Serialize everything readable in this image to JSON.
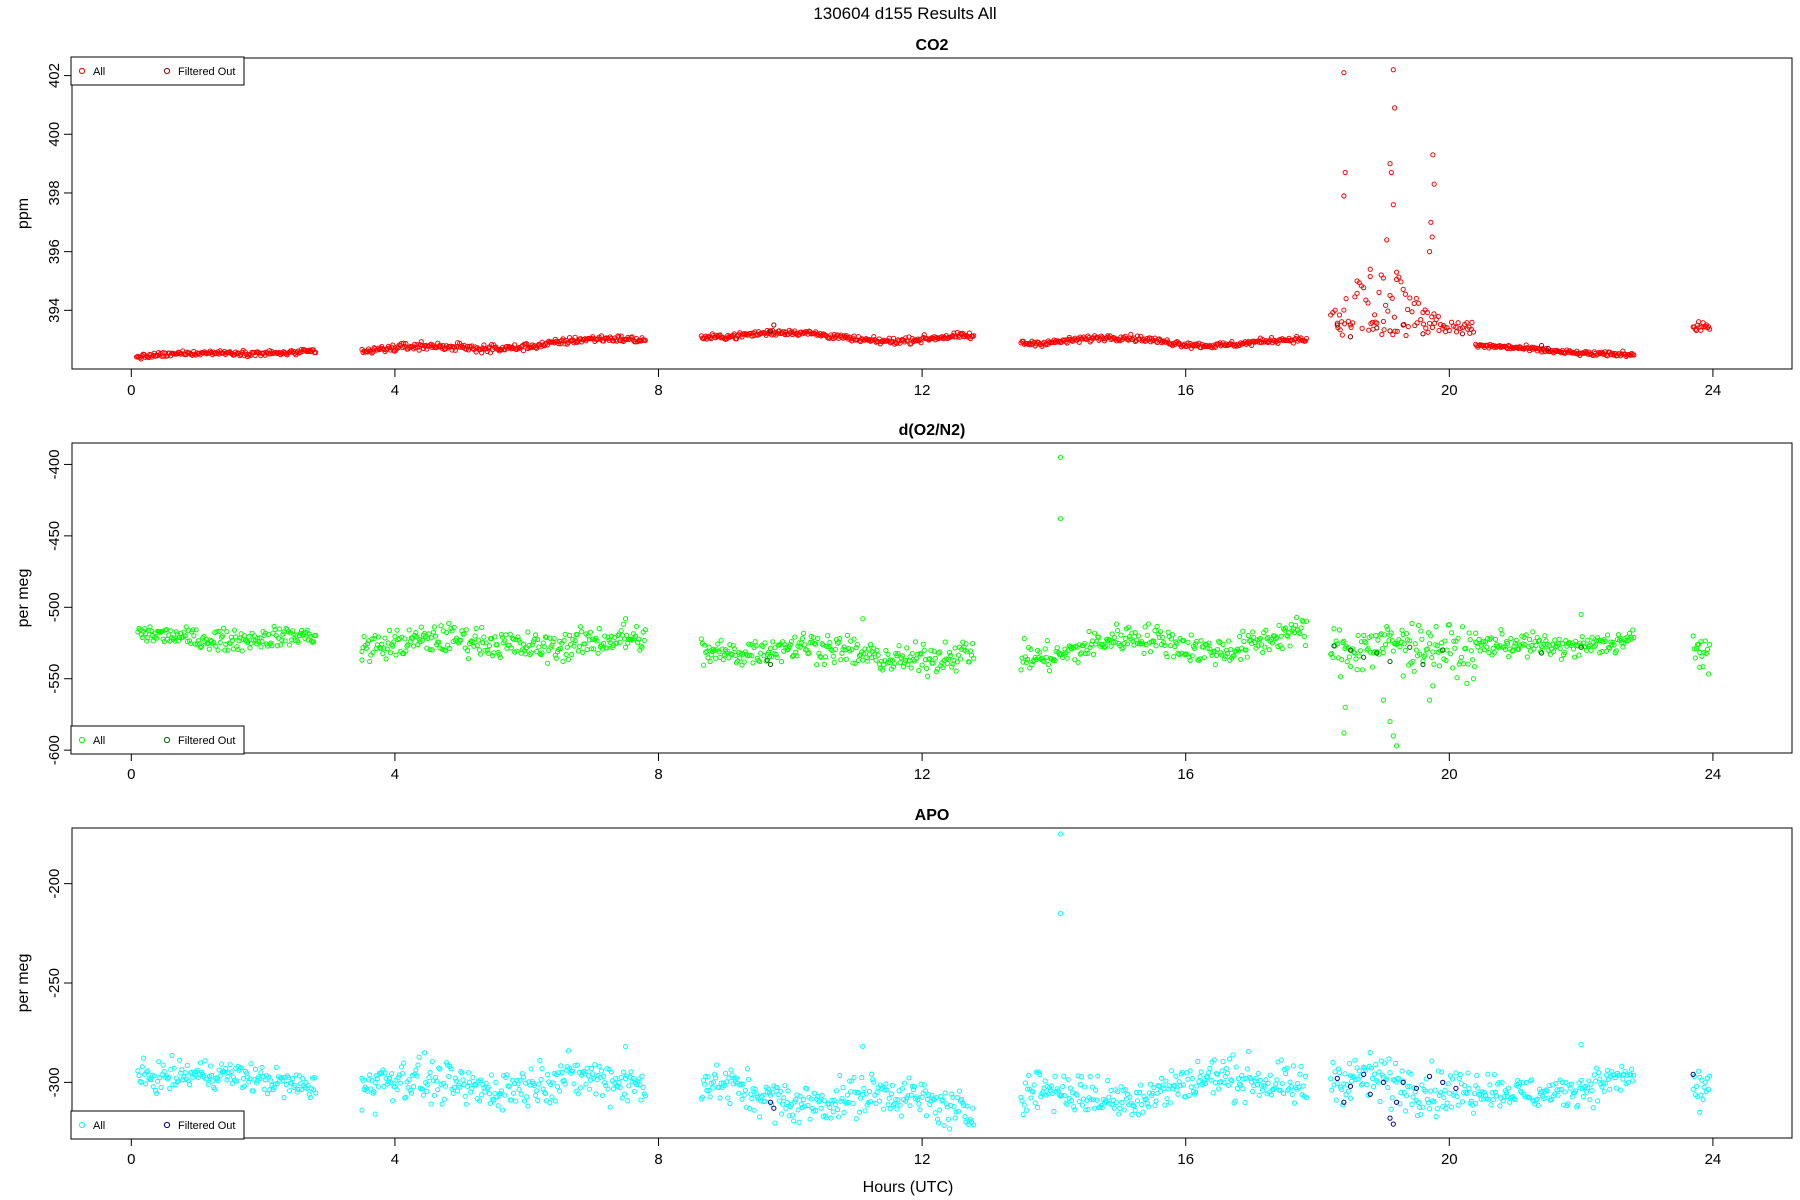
{
  "figure": {
    "title": "130604   d155   Results All",
    "xlabel": "Hours (UTC)"
  },
  "chart_data": [
    {
      "type": "scatter",
      "title": "CO2",
      "ylabel": "ppm",
      "xlim": [
        -0.9,
        25.2
      ],
      "ylim": [
        392.0,
        402.6
      ],
      "xticks": [
        0,
        4,
        8,
        12,
        16,
        20,
        24
      ],
      "yticks": [
        394,
        396,
        398,
        400,
        402
      ],
      "grid": false,
      "legend": {
        "position": "top-left",
        "entries": [
          "All",
          "Filtered Out"
        ]
      },
      "colors": {
        "all": "#ff0000",
        "filtered": "#8b0000"
      },
      "segments": [
        {
          "start": 0.08,
          "end": 2.8,
          "y0": 392.43,
          "y1": 392.63,
          "noise": 0.04,
          "wave": 0.05
        },
        {
          "start": 3.5,
          "end": 7.8,
          "y0": 392.6,
          "y1": 393.0,
          "noise": 0.06,
          "wave": 0.1
        },
        {
          "start": 8.65,
          "end": 12.8,
          "y0": 393.2,
          "y1": 393.0,
          "noise": 0.05,
          "wave": 0.12
        },
        {
          "start": 13.5,
          "end": 17.85,
          "y0": 393.0,
          "y1": 392.88,
          "noise": 0.05,
          "wave": 0.12
        },
        {
          "start": 20.4,
          "end": 22.8,
          "y0": 392.75,
          "y1": 392.5,
          "noise": 0.04,
          "wave": 0.05
        },
        {
          "start": 23.7,
          "end": 23.95,
          "y0": 393.5,
          "y1": 393.45,
          "noise": 0.1,
          "wave": 0.0
        }
      ],
      "spike": {
        "start": 18.2,
        "end": 20.4,
        "base": 393.1
      },
      "outliers": [
        [
          18.4,
          402.1
        ],
        [
          19.15,
          402.2
        ],
        [
          19.17,
          400.9
        ],
        [
          18.42,
          398.7
        ],
        [
          18.4,
          397.9
        ],
        [
          19.1,
          399.0
        ],
        [
          19.12,
          398.7
        ],
        [
          19.15,
          397.6
        ],
        [
          19.75,
          399.3
        ],
        [
          19.77,
          398.3
        ],
        [
          19.72,
          397.0
        ],
        [
          19.74,
          396.5
        ],
        [
          19.7,
          396.0
        ],
        [
          19.05,
          396.4
        ],
        [
          19.2,
          395.3
        ],
        [
          19.0,
          395.1
        ],
        [
          18.6,
          395.0
        ],
        [
          18.8,
          395.4
        ]
      ],
      "filtered_points": [
        [
          9.7,
          393.3
        ],
        [
          9.75,
          393.5
        ],
        [
          18.3,
          393.5
        ],
        [
          18.5,
          393.1
        ],
        [
          18.9,
          393.4
        ],
        [
          19.1,
          393.3
        ],
        [
          19.3,
          393.5
        ],
        [
          19.6,
          393.2
        ],
        [
          20.2,
          393.2
        ],
        [
          21.4,
          392.8
        ],
        [
          21.5,
          392.7
        ]
      ]
    },
    {
      "type": "scatter",
      "title": "d(O2/N2)",
      "ylabel": "per meg",
      "xlim": [
        -0.9,
        25.2
      ],
      "ylim": [
        -602,
        -385
      ],
      "xticks": [
        0,
        4,
        8,
        12,
        16,
        20,
        24
      ],
      "yticks": [
        -400,
        -450,
        -500,
        -550,
        -600
      ],
      "grid": false,
      "legend": {
        "position": "bottom-left",
        "entries": [
          "All",
          "Filtered Out"
        ]
      },
      "colors": {
        "all": "#00ff00",
        "filtered": "#006400"
      },
      "segments": [
        {
          "start": 0.1,
          "end": 2.8,
          "y0": -520,
          "y1": -522,
          "noise": 3.5,
          "wave": 2
        },
        {
          "start": 3.5,
          "end": 7.8,
          "y0": -525,
          "y1": -525,
          "noise": 5,
          "wave": 3
        },
        {
          "start": 8.65,
          "end": 12.8,
          "y0": -528,
          "y1": -535,
          "noise": 5,
          "wave": 4
        },
        {
          "start": 13.5,
          "end": 17.85,
          "y0": -530,
          "y1": -522,
          "noise": 5,
          "wave": 6
        },
        {
          "start": 18.2,
          "end": 20.4,
          "y0": -528,
          "y1": -530,
          "noise": 8,
          "wave": 4
        },
        {
          "start": 20.4,
          "end": 22.8,
          "y0": -530,
          "y1": -522,
          "noise": 4,
          "wave": 3
        },
        {
          "start": 23.7,
          "end": 23.95,
          "y0": -530,
          "y1": -530,
          "noise": 6,
          "wave": 0
        }
      ],
      "outliers": [
        [
          14.1,
          -395
        ],
        [
          14.1,
          -438
        ],
        [
          18.4,
          -588
        ],
        [
          18.42,
          -570
        ],
        [
          19.1,
          -580
        ],
        [
          19.15,
          -590
        ],
        [
          19.2,
          -597
        ],
        [
          19.0,
          -565
        ],
        [
          19.7,
          -565
        ],
        [
          19.75,
          -555
        ],
        [
          19.3,
          -548
        ],
        [
          11.1,
          -508
        ],
        [
          7.5,
          -508
        ],
        [
          22.0,
          -505
        ],
        [
          3.5,
          -537
        ],
        [
          23.8,
          -542
        ]
      ],
      "filtered_points": [
        [
          9.65,
          -537
        ],
        [
          9.7,
          -540
        ],
        [
          18.25,
          -527
        ],
        [
          18.5,
          -530
        ],
        [
          18.7,
          -535
        ],
        [
          18.9,
          -532
        ],
        [
          19.1,
          -538
        ],
        [
          19.4,
          -528
        ],
        [
          19.6,
          -540
        ],
        [
          19.9,
          -530
        ],
        [
          21.4,
          -532
        ],
        [
          22.0,
          -528
        ]
      ]
    },
    {
      "type": "scatter",
      "title": "APO",
      "ylabel": "per meg",
      "xlim": [
        -0.9,
        25.2
      ],
      "ylim": [
        -328,
        -172
      ],
      "xticks": [
        0,
        4,
        8,
        12,
        16,
        20,
        24
      ],
      "yticks": [
        -200,
        -250,
        -300
      ],
      "grid": false,
      "legend": {
        "position": "bottom-left",
        "entries": [
          "All",
          "Filtered Out"
        ]
      },
      "colors": {
        "all": "#00ffff",
        "filtered": "#00008b"
      },
      "segments": [
        {
          "start": 0.1,
          "end": 2.8,
          "y0": -296,
          "y1": -300,
          "noise": 3.5,
          "wave": 2
        },
        {
          "start": 3.5,
          "end": 7.8,
          "y0": -301,
          "y1": -300,
          "noise": 5,
          "wave": 3
        },
        {
          "start": 8.65,
          "end": 12.8,
          "y0": -304,
          "y1": -312,
          "noise": 5,
          "wave": 4
        },
        {
          "start": 13.5,
          "end": 17.85,
          "y0": -308,
          "y1": -298,
          "noise": 5,
          "wave": 4
        },
        {
          "start": 18.2,
          "end": 20.4,
          "y0": -300,
          "y1": -302,
          "noise": 6,
          "wave": 3
        },
        {
          "start": 20.4,
          "end": 22.8,
          "y0": -305,
          "y1": -300,
          "noise": 4,
          "wave": 3
        },
        {
          "start": 23.7,
          "end": 23.95,
          "y0": -302,
          "y1": -302,
          "noise": 6,
          "wave": 0
        }
      ],
      "outliers": [
        [
          14.1,
          -175
        ],
        [
          14.1,
          -215
        ],
        [
          11.1,
          -282
        ],
        [
          7.5,
          -282
        ],
        [
          22.0,
          -281
        ],
        [
          3.5,
          -314
        ],
        [
          3.7,
          -316
        ],
        [
          23.8,
          -315
        ],
        [
          18.5,
          -308
        ]
      ],
      "filtered_points": [
        [
          9.7,
          -310
        ],
        [
          9.75,
          -313
        ],
        [
          18.3,
          -298
        ],
        [
          18.4,
          -310
        ],
        [
          18.5,
          -302
        ],
        [
          18.7,
          -296
        ],
        [
          18.8,
          -306
        ],
        [
          19.0,
          -300
        ],
        [
          19.1,
          -318
        ],
        [
          19.15,
          -321
        ],
        [
          19.2,
          -310
        ],
        [
          19.3,
          -300
        ],
        [
          19.5,
          -303
        ],
        [
          19.7,
          -297
        ],
        [
          19.9,
          -300
        ],
        [
          20.1,
          -303
        ],
        [
          23.7,
          -296
        ]
      ]
    }
  ]
}
